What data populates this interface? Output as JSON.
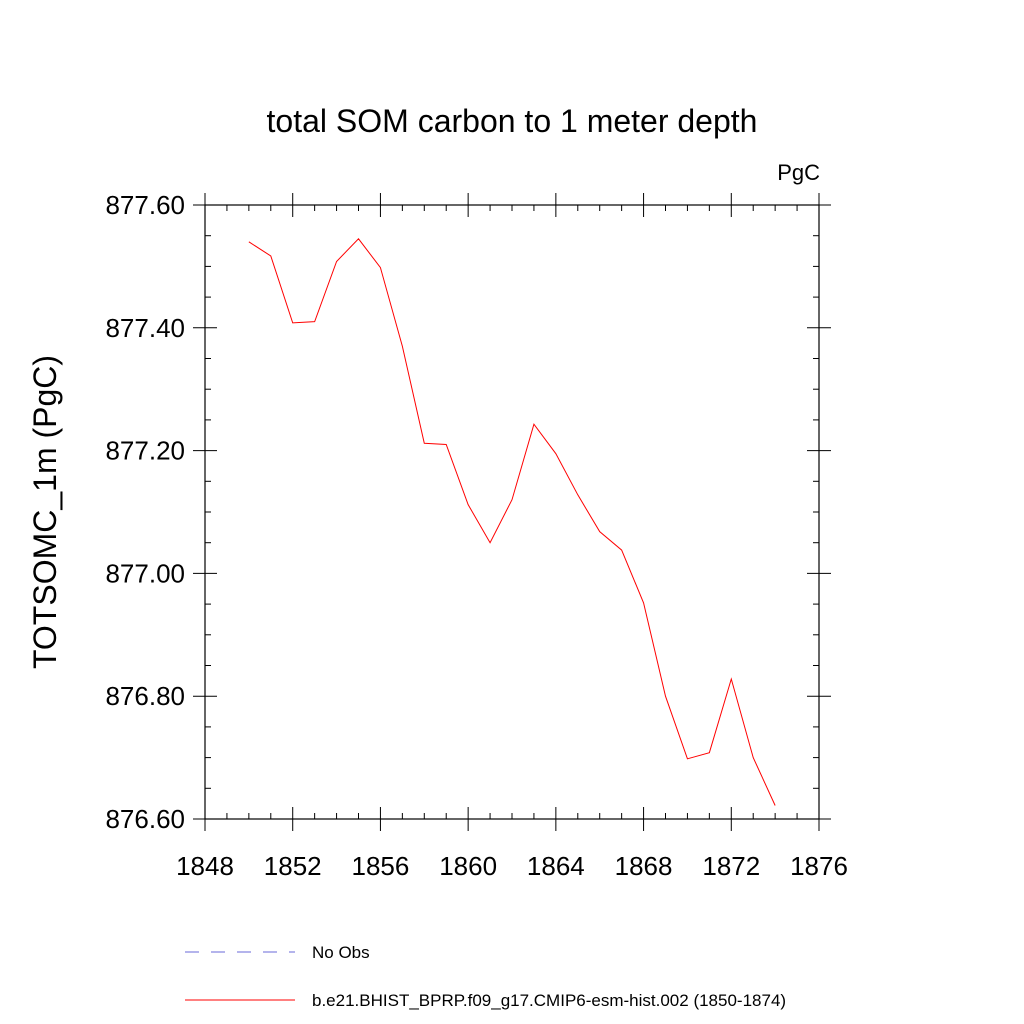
{
  "chart_data": {
    "type": "line",
    "title": "total SOM carbon to 1 meter depth",
    "units_label": "PgC",
    "ylabel": "TOTSOMC_1m  (PgC)",
    "xlabel": "",
    "xlim": [
      1848,
      1876
    ],
    "ylim": [
      876.6,
      877.6
    ],
    "x_ticks": [
      1848,
      1852,
      1856,
      1860,
      1864,
      1868,
      1872,
      1876
    ],
    "x_tick_labels": [
      "1848",
      "1852",
      "1856",
      "1860",
      "1864",
      "1868",
      "1872",
      "1876"
    ],
    "y_ticks": [
      876.6,
      876.8,
      877.0,
      877.2,
      877.4,
      877.6
    ],
    "y_tick_labels": [
      "876.60",
      "876.80",
      "877.00",
      "877.20",
      "877.40",
      "877.60"
    ],
    "grid": false,
    "legend_position": "bottom",
    "series": [
      {
        "name": "No Obs",
        "color": "#6a6ad8",
        "dash": "dashed",
        "x": [],
        "values": []
      },
      {
        "name": "b.e21.BHIST_BPRP.f09_g17.CMIP6-esm-hist.002 (1850-1874)",
        "color": "#ff0000",
        "dash": "solid",
        "x": [
          1850,
          1851,
          1852,
          1853,
          1854,
          1855,
          1856,
          1857,
          1858,
          1859,
          1860,
          1861,
          1862,
          1863,
          1864,
          1865,
          1866,
          1867,
          1868,
          1869,
          1870,
          1871,
          1872,
          1873,
          1874
        ],
        "values": [
          877.54,
          877.517,
          877.408,
          877.41,
          877.508,
          877.545,
          877.498,
          877.37,
          877.212,
          877.21,
          877.112,
          877.05,
          877.12,
          877.243,
          877.195,
          877.128,
          877.068,
          877.038,
          876.952,
          876.8,
          876.698,
          876.708,
          876.828,
          876.7,
          876.622
        ]
      }
    ]
  }
}
